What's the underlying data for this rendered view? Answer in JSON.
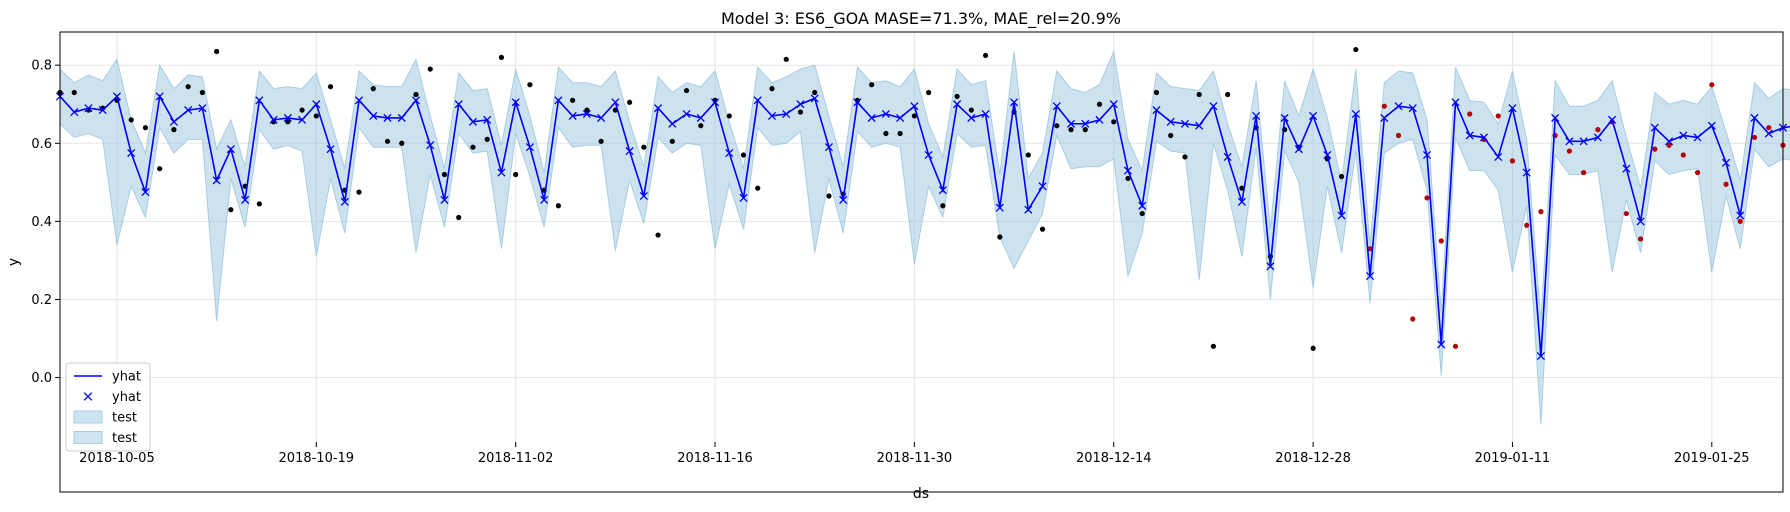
{
  "chart_data": {
    "type": "line",
    "title": "Model 3: ES6_GOA MASE=71.3%, MAE_rel=20.9%",
    "xlabel": "ds",
    "ylabel": "y",
    "x_range": [
      "2018-10-01",
      "2019-01-30"
    ],
    "ylim": [
      -0.165,
      0.885
    ],
    "grid": true,
    "legend_position": "lower-left",
    "x_ticks": [
      "2018-10-05",
      "2018-10-19",
      "2018-11-02",
      "2018-11-16",
      "2018-11-30",
      "2018-12-14",
      "2018-12-28",
      "2019-01-11",
      "2019-01-25"
    ],
    "y_ticks": [
      0.0,
      0.2,
      0.4,
      0.6,
      0.8
    ],
    "legend": [
      {
        "label": "yhat",
        "kind": "line",
        "color": "#0000ff"
      },
      {
        "label": "yhat",
        "kind": "marker",
        "color": "#0000ff"
      },
      {
        "label": "test",
        "kind": "band",
        "color": "#a6cee3"
      },
      {
        "label": "test",
        "kind": "band",
        "color": "#a6cee3"
      }
    ],
    "colors": {
      "forecast": "#0000ff",
      "band": "#8fbfdc",
      "train_points": "#000000",
      "test_points": "#b30000"
    },
    "test_start": "2019-01-01",
    "yhat": [
      0.72,
      0.68,
      0.69,
      0.685,
      0.72,
      0.575,
      0.475,
      0.72,
      0.655,
      0.685,
      0.69,
      0.505,
      0.585,
      0.455,
      0.71,
      0.66,
      0.665,
      0.66,
      0.7,
      0.585,
      0.45,
      0.71,
      0.67,
      0.665,
      0.665,
      0.71,
      0.595,
      0.455,
      0.7,
      0.655,
      0.66,
      0.525,
      0.705,
      0.59,
      0.455,
      0.71,
      0.67,
      0.675,
      0.665,
      0.705,
      0.58,
      0.465,
      0.69,
      0.65,
      0.675,
      0.665,
      0.705,
      0.575,
      0.46,
      0.71,
      0.67,
      0.675,
      0.7,
      0.715,
      0.59,
      0.455,
      0.705,
      0.665,
      0.675,
      0.665,
      0.695,
      0.57,
      0.48,
      0.7,
      0.665,
      0.675,
      0.435,
      0.705,
      0.43,
      0.49,
      0.695,
      0.65,
      0.65,
      0.66,
      0.7,
      0.53,
      0.44,
      0.685,
      0.655,
      0.65,
      0.645,
      0.695,
      0.565,
      0.45,
      0.67,
      0.285,
      0.665,
      0.585,
      0.67,
      0.57,
      0.415,
      0.675,
      0.26,
      0.665,
      0.695,
      0.69,
      0.57,
      0.085,
      0.705,
      0.62,
      0.615,
      0.565,
      0.69,
      0.525,
      0.055,
      0.665,
      0.605,
      0.605,
      0.615,
      0.66,
      0.535,
      0.4,
      0.64,
      0.605,
      0.62,
      0.615,
      0.645,
      0.55,
      0.415,
      0.665,
      0.625,
      0.64,
      0.645
    ],
    "band_upper": [
      0.79,
      0.755,
      0.775,
      0.76,
      0.815,
      0.66,
      0.575,
      0.8,
      0.74,
      0.775,
      0.77,
      0.585,
      0.66,
      0.54,
      0.785,
      0.74,
      0.745,
      0.74,
      0.78,
      0.66,
      0.535,
      0.785,
      0.75,
      0.745,
      0.745,
      0.815,
      0.67,
      0.535,
      0.78,
      0.735,
      0.74,
      0.595,
      0.79,
      0.67,
      0.525,
      0.795,
      0.755,
      0.755,
      0.745,
      0.785,
      0.655,
      0.54,
      0.77,
      0.73,
      0.755,
      0.745,
      0.785,
      0.655,
      0.535,
      0.795,
      0.755,
      0.77,
      0.79,
      0.8,
      0.67,
      0.54,
      0.795,
      0.755,
      0.76,
      0.745,
      0.79,
      0.65,
      0.565,
      0.79,
      0.75,
      0.76,
      0.52,
      0.835,
      0.51,
      0.575,
      0.785,
      0.74,
      0.73,
      0.75,
      0.835,
      0.61,
      0.53,
      0.78,
      0.745,
      0.74,
      0.735,
      0.785,
      0.65,
      0.54,
      0.76,
      0.38,
      0.76,
      0.67,
      0.79,
      0.665,
      0.5,
      0.79,
      0.34,
      0.755,
      0.785,
      0.78,
      0.66,
      0.17,
      0.795,
      0.71,
      0.705,
      0.65,
      0.785,
      0.61,
      0.145,
      0.76,
      0.695,
      0.695,
      0.71,
      0.76,
      0.615,
      0.485,
      0.73,
      0.7,
      0.71,
      0.7,
      0.745,
      0.63,
      0.505,
      0.755,
      0.715,
      0.74,
      0.735
    ],
    "band_lower": [
      0.65,
      0.615,
      0.625,
      0.61,
      0.34,
      0.49,
      0.41,
      0.64,
      0.575,
      0.61,
      0.61,
      0.145,
      0.51,
      0.385,
      0.635,
      0.585,
      0.595,
      0.58,
      0.31,
      0.51,
      0.37,
      0.64,
      0.59,
      0.59,
      0.59,
      0.32,
      0.52,
      0.385,
      0.625,
      0.575,
      0.58,
      0.33,
      0.625,
      0.515,
      0.385,
      0.64,
      0.59,
      0.595,
      0.595,
      0.325,
      0.505,
      0.395,
      0.615,
      0.575,
      0.6,
      0.595,
      0.33,
      0.495,
      0.38,
      0.64,
      0.595,
      0.6,
      0.63,
      0.32,
      0.51,
      0.37,
      0.63,
      0.59,
      0.6,
      0.59,
      0.29,
      0.49,
      0.41,
      0.625,
      0.59,
      0.595,
      0.36,
      0.28,
      0.35,
      0.42,
      0.62,
      0.535,
      0.54,
      0.54,
      0.56,
      0.26,
      0.37,
      0.605,
      0.58,
      0.575,
      0.25,
      0.6,
      0.48,
      0.31,
      0.59,
      0.2,
      0.58,
      0.5,
      0.23,
      0.49,
      0.32,
      0.58,
      0.19,
      0.575,
      0.6,
      0.61,
      0.48,
      0.005,
      0.615,
      0.53,
      0.53,
      0.48,
      0.27,
      0.44,
      -0.12,
      0.57,
      0.52,
      0.52,
      0.53,
      0.27,
      0.455,
      0.32,
      0.555,
      0.52,
      0.53,
      0.535,
      0.27,
      0.465,
      0.33,
      0.585,
      0.54,
      0.56,
      0.555
    ],
    "observed": [
      0.73,
      0.73,
      0.685,
      0.69,
      0.71,
      0.66,
      0.64,
      0.535,
      0.635,
      0.745,
      0.73,
      0.835,
      0.43,
      0.49,
      0.445,
      0.655,
      0.655,
      0.685,
      0.67,
      0.745,
      0.48,
      0.475,
      0.74,
      0.605,
      0.6,
      0.725,
      0.79,
      0.52,
      0.41,
      0.59,
      0.61,
      0.82,
      0.52,
      0.75,
      0.48,
      0.44,
      0.71,
      0.685,
      0.605,
      0.685,
      0.705,
      0.59,
      0.365,
      0.605,
      0.735,
      0.645,
      0.71,
      0.67,
      0.57,
      0.485,
      0.74,
      0.815,
      0.68,
      0.73,
      0.465,
      0.47,
      0.71,
      0.75,
      0.625,
      0.625,
      0.67,
      0.73,
      0.44,
      0.72,
      0.685,
      0.825,
      0.36,
      0.68,
      0.57,
      0.38,
      0.645,
      0.635,
      0.635,
      0.7,
      0.655,
      0.51,
      0.42,
      0.73,
      0.62,
      0.565,
      0.725,
      0.08,
      0.725,
      0.485,
      0.64,
      0.31,
      0.635,
      0.59,
      0.075,
      0.56,
      0.515,
      0.84,
      0.33,
      0.695,
      0.62,
      0.15,
      0.46,
      0.35,
      0.08,
      0.675,
      0.61,
      0.67,
      0.555,
      0.39,
      0.425,
      0.62,
      0.58,
      0.525,
      0.635,
      0.655,
      0.42,
      0.355,
      0.585,
      0.595,
      0.57,
      0.525,
      0.75,
      0.495,
      0.4,
      0.615,
      0.64,
      0.595,
      0.625
    ]
  }
}
